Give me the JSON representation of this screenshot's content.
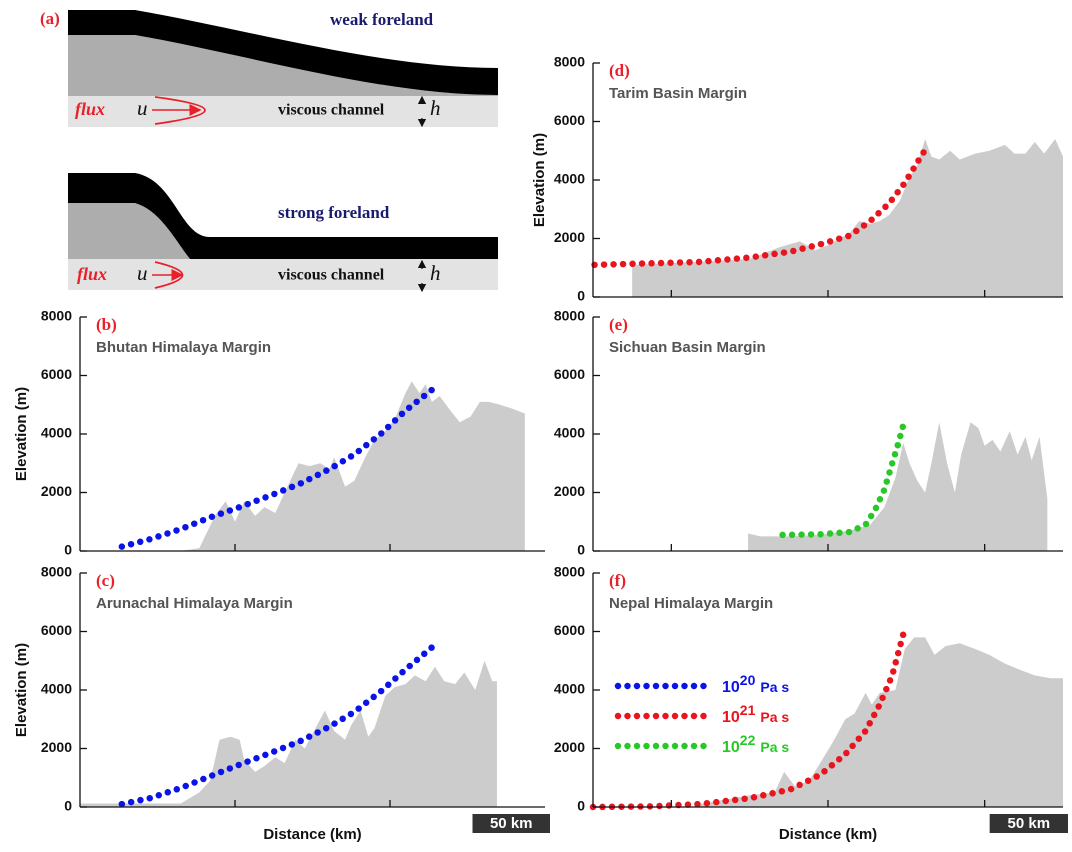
{
  "diagram": {
    "label": "(a)",
    "weak": {
      "title": "weak foreland",
      "flux": "flux",
      "u": "u",
      "channel": "viscous channel",
      "h": "h"
    },
    "strong": {
      "title": "strong foreland",
      "flux": "flux",
      "u": "u",
      "channel": "viscous channel",
      "h": "h"
    }
  },
  "chart_data": [
    {
      "type": "area",
      "panel": "(b)",
      "title": "Bhutan Himalaya Margin",
      "y_label": "Elevation (m)",
      "xlim": [
        0,
        300
      ],
      "ylim": [
        0,
        8000
      ],
      "xticks": [
        100,
        200
      ],
      "yticks": [
        0,
        2000,
        4000,
        6000,
        8000
      ],
      "series": [
        {
          "color": "#cccccc",
          "style": "area",
          "x": [
            65,
            77,
            87,
            94,
            100,
            106,
            113,
            119,
            126,
            132,
            141,
            148,
            155,
            161,
            164,
            171,
            177,
            184,
            190,
            197,
            203,
            210,
            214,
            219,
            223,
            227,
            232,
            239,
            245,
            252,
            258,
            264,
            271,
            277,
            287
          ],
          "values": [
            0,
            100,
            1200,
            1700,
            1000,
            1700,
            1200,
            1500,
            1300,
            2000,
            3000,
            2900,
            3000,
            2800,
            3200,
            2200,
            2400,
            3200,
            3800,
            4100,
            4500,
            5400,
            5800,
            5400,
            5700,
            5100,
            5300,
            4800,
            4400,
            4600,
            5100,
            5100,
            5000,
            4900,
            4700
          ]
        },
        {
          "color": "#0a14e6",
          "style": "dots",
          "x": [
            27,
            45,
            65,
            84,
            103,
            123,
            142,
            161,
            177,
            194,
            210,
            228
          ],
          "values": [
            150,
            400,
            750,
            1150,
            1500,
            1900,
            2300,
            2800,
            3300,
            4000,
            4800,
            5550
          ]
        }
      ]
    },
    {
      "type": "area",
      "panel": "(c)",
      "title": "Arunachal Himalaya Margin",
      "y_label": "Elevation (m)",
      "x_label": "Distance (km)",
      "scale_bar": {
        "length": 50,
        "label": "50 km"
      },
      "xlim": [
        0,
        300
      ],
      "ylim": [
        0,
        8000
      ],
      "xticks": [
        100,
        200
      ],
      "yticks": [
        0,
        2000,
        4000,
        6000,
        8000
      ],
      "series": [
        {
          "color": "#cccccc",
          "style": "area",
          "x": [
            0,
            65,
            77,
            84,
            90,
            97,
            103,
            106,
            113,
            119,
            126,
            132,
            139,
            145,
            152,
            158,
            164,
            171,
            175,
            181,
            186,
            190,
            197,
            203,
            210,
            216,
            223,
            229,
            235,
            242,
            248,
            255,
            261,
            266,
            269
          ],
          "values": [
            120,
            120,
            500,
            900,
            2300,
            2400,
            2300,
            1600,
            1200,
            1400,
            1700,
            1500,
            2300,
            2000,
            2700,
            3300,
            2600,
            2300,
            2800,
            3300,
            2400,
            2700,
            3800,
            4100,
            4200,
            4500,
            4300,
            4800,
            4300,
            4200,
            4600,
            4000,
            5000,
            4300,
            4300
          ]
        },
        {
          "color": "#0a14e6",
          "style": "dots",
          "x": [
            27,
            45,
            65,
            84,
            103,
            123,
            142,
            161,
            177,
            194,
            210,
            228
          ],
          "values": [
            100,
            300,
            650,
            1050,
            1450,
            1850,
            2250,
            2750,
            3250,
            3950,
            4700,
            5500
          ]
        }
      ]
    },
    {
      "type": "area",
      "panel": "(d)",
      "title": "Tarim Basin Margin",
      "y_label": "Elevation (m)",
      "xlim": [
        0,
        300
      ],
      "ylim": [
        0,
        8000
      ],
      "xticks": [
        50,
        150,
        250
      ],
      "yticks": [
        0,
        2000,
        4000,
        6000,
        8000
      ],
      "series": [
        {
          "color": "#cccccc",
          "style": "area",
          "x": [
            25,
            68,
            100,
            119,
            132,
            142,
            151,
            164,
            170,
            177,
            183,
            189,
            196,
            202,
            207,
            212,
            216,
            221,
            228,
            234,
            244,
            253,
            263,
            269,
            276,
            282,
            288,
            295,
            300
          ],
          "values": [
            1100,
            1200,
            1300,
            1700,
            1900,
            1600,
            1800,
            2200,
            2600,
            2500,
            2600,
            2800,
            3300,
            4100,
            4500,
            5400,
            4800,
            4700,
            5000,
            4700,
            4900,
            5000,
            5200,
            4900,
            4900,
            5300,
            4900,
            5400,
            4800
          ]
        },
        {
          "color": "#e8141e",
          "style": "dots",
          "x": [
            1,
            36,
            68,
            100,
            126,
            145,
            164,
            177,
            189,
            199,
            207,
            214
          ],
          "values": [
            1100,
            1150,
            1200,
            1350,
            1550,
            1800,
            2100,
            2600,
            3200,
            3900,
            4600,
            5200
          ]
        }
      ]
    },
    {
      "type": "area",
      "panel": "(e)",
      "title": "Sichuan Basin Margin",
      "xlim": [
        0,
        300
      ],
      "ylim": [
        0,
        8000
      ],
      "xticks": [
        50,
        150,
        250
      ],
      "yticks": [
        0,
        2000,
        4000,
        6000,
        8000
      ],
      "series": [
        {
          "color": "#cccccc",
          "style": "area",
          "x": [
            99,
            107,
            126,
            145,
            164,
            177,
            186,
            193,
            198,
            202,
            207,
            212,
            216,
            221,
            226,
            231,
            235,
            241,
            246,
            250,
            255,
            260,
            266,
            271,
            276,
            280,
            285,
            290
          ],
          "values": [
            600,
            500,
            500,
            550,
            700,
            900,
            1500,
            2500,
            3700,
            3000,
            2400,
            2000,
            3000,
            4400,
            3000,
            2000,
            3300,
            4400,
            4200,
            3600,
            3800,
            3400,
            4100,
            3300,
            3900,
            3100,
            3900,
            1800
          ]
        },
        {
          "color": "#28c828",
          "style": "dots",
          "x": [
            121,
            145,
            164,
            174,
            180,
            186,
            191,
            195,
            198
          ],
          "values": [
            550,
            570,
            650,
            900,
            1400,
            2100,
            3000,
            3700,
            4300
          ]
        }
      ]
    },
    {
      "type": "area",
      "panel": "(f)",
      "title": "Nepal Himalaya Margin",
      "x_label": "Distance (km)",
      "scale_bar": {
        "length": 50,
        "label": "50 km"
      },
      "xlim": [
        0,
        300
      ],
      "ylim": [
        0,
        8000
      ],
      "xticks": [
        50,
        150,
        250
      ],
      "yticks": [
        0,
        2000,
        4000,
        6000,
        8000
      ],
      "legend": [
        {
          "color": "#0a14e6",
          "base": "10",
          "exponent": "20",
          "unit": "Pa s"
        },
        {
          "color": "#e8141e",
          "base": "10",
          "exponent": "21",
          "unit": "Pa s"
        },
        {
          "color": "#28c828",
          "base": "10",
          "exponent": "22",
          "unit": "Pa s"
        }
      ],
      "series": [
        {
          "color": "#cccccc",
          "style": "area",
          "x": [
            68,
            100,
            116,
            122,
            129,
            138,
            145,
            154,
            161,
            167,
            174,
            178,
            183,
            193,
            199,
            205,
            212,
            218,
            225,
            234,
            244,
            253,
            263,
            272,
            282,
            292,
            300
          ],
          "values": [
            100,
            400,
            500,
            1200,
            700,
            900,
            1500,
            2300,
            3000,
            3200,
            3900,
            3500,
            3900,
            4000,
            5400,
            5800,
            5800,
            5200,
            5500,
            5600,
            5400,
            5200,
            4900,
            4700,
            4500,
            4400,
            4400
          ]
        },
        {
          "color": "#e8141e",
          "style": "dots",
          "x": [
            0,
            36,
            68,
            100,
            126,
            145,
            161,
            174,
            183,
            191,
            198
          ],
          "values": [
            0,
            20,
            100,
            300,
            600,
            1100,
            1800,
            2600,
            3500,
            4500,
            5900
          ]
        }
      ]
    }
  ]
}
